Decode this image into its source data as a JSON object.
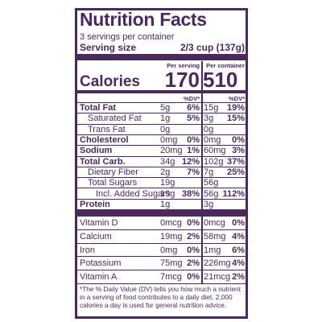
{
  "title": "Nutrition Facts",
  "servings": "3 servings per container",
  "serving_size": {
    "label": "Serving size",
    "value": "2/3 cup (137g)"
  },
  "columns": [
    "Per serving",
    "Per container"
  ],
  "calories": {
    "label": "Calories",
    "values": [
      "170",
      "510"
    ]
  },
  "dv_header": [
    "%DV*",
    "%DV*"
  ],
  "nutrients": [
    {
      "name": "Total Fat",
      "style": "bold",
      "per_serving": [
        "5g",
        "6%"
      ],
      "per_container": [
        "15g",
        "19%"
      ]
    },
    {
      "name": "Saturated Fat",
      "style": "indent",
      "per_serving": [
        "1g",
        "5%"
      ],
      "per_container": [
        "3g",
        "15%"
      ]
    },
    {
      "name": "Trans Fat",
      "style": "indent",
      "per_serving": [
        "0g"
      ],
      "per_container": [
        "0g"
      ]
    },
    {
      "name": "Cholesterol",
      "style": "bold",
      "per_serving": [
        "0mg",
        "0%"
      ],
      "per_container": [
        "0mg",
        "0%"
      ]
    },
    {
      "name": "Sodium",
      "style": "bold",
      "per_serving": [
        "20mg",
        "1%"
      ],
      "per_container": [
        "60mg",
        "3%"
      ]
    },
    {
      "name": "Total Carb.",
      "style": "bold",
      "per_serving": [
        "34g",
        "12%"
      ],
      "per_container": [
        "102g",
        "37%"
      ]
    },
    {
      "name": "Dietary Fiber",
      "style": "indent",
      "per_serving": [
        "2g",
        "7%"
      ],
      "per_container": [
        "7g",
        "25%"
      ]
    },
    {
      "name": "Total Sugars",
      "style": "indent",
      "per_serving": [
        "19g"
      ],
      "per_container": [
        "56g"
      ]
    },
    {
      "name": "Incl. Added Sugars",
      "style": "indent2",
      "per_serving": [
        "19g",
        "38%"
      ],
      "per_container": [
        "56g",
        "112%"
      ]
    },
    {
      "name": "Protein",
      "style": "bold",
      "per_serving": [
        "1g"
      ],
      "per_container": [
        "3g"
      ]
    }
  ],
  "vitamins": [
    {
      "name": "Vitamin D",
      "per_serving": [
        "0mcg",
        "0%"
      ],
      "per_container": [
        "0mcg",
        "0%"
      ]
    },
    {
      "name": "Calcium",
      "per_serving": [
        "19mg",
        "2%"
      ],
      "per_container": [
        "58mg",
        "4%"
      ]
    },
    {
      "name": "Iron",
      "per_serving": [
        "0mg",
        "0%"
      ],
      "per_container": [
        "1mg",
        "6%"
      ]
    },
    {
      "name": "Potassium",
      "per_serving": [
        "75mg",
        "2%"
      ],
      "per_container": [
        "226mg",
        "4%"
      ]
    },
    {
      "name": "Vitamin A",
      "per_serving": [
        "7mcg",
        "0%"
      ],
      "per_container": [
        "21mcg",
        "2%"
      ]
    }
  ],
  "footnote": "*The % Daily Value (DV) tells you how much a nutrient in a serving of food contributes to a daily diet. 2,000 calories a day is used for general nutrition advice."
}
